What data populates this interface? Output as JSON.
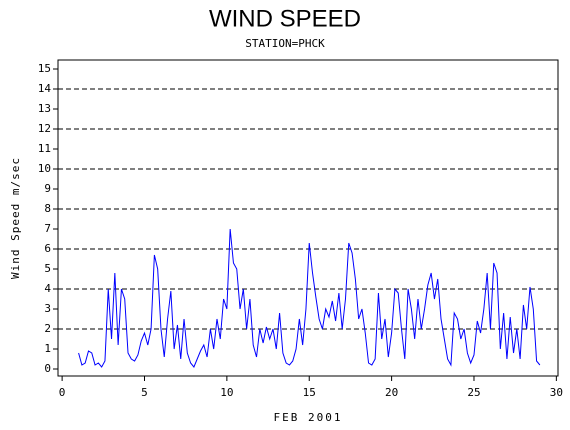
{
  "chart_data": {
    "type": "line",
    "title": "WIND SPEED",
    "subtitle": "STATION=PHCK",
    "x_label": "FEB 2001",
    "y_label": "Wind Speed m/sec",
    "x": [
      1,
      1.2,
      1.4,
      1.6,
      1.8,
      2,
      2.2,
      2.4,
      2.6,
      2.8,
      3,
      3.2,
      3.4,
      3.6,
      3.8,
      4,
      4.2,
      4.4,
      4.6,
      4.8,
      5,
      5.2,
      5.4,
      5.6,
      5.8,
      6,
      6.2,
      6.4,
      6.6,
      6.8,
      7,
      7.2,
      7.4,
      7.6,
      7.8,
      8,
      8.2,
      8.4,
      8.6,
      8.8,
      9,
      9.2,
      9.4,
      9.6,
      9.8,
      10,
      10.2,
      10.4,
      10.6,
      10.8,
      11,
      11.2,
      11.4,
      11.6,
      11.8,
      12,
      12.2,
      12.4,
      12.6,
      12.8,
      13,
      13.2,
      13.4,
      13.6,
      13.8,
      14,
      14.2,
      14.4,
      14.6,
      14.8,
      15,
      15.2,
      15.4,
      15.6,
      15.8,
      16,
      16.2,
      16.4,
      16.6,
      16.8,
      17,
      17.2,
      17.4,
      17.6,
      17.8,
      18,
      18.2,
      18.4,
      18.6,
      18.8,
      19,
      19.2,
      19.4,
      19.6,
      19.8,
      20,
      20.2,
      20.4,
      20.6,
      20.8,
      21,
      21.2,
      21.4,
      21.6,
      21.8,
      22,
      22.2,
      22.4,
      22.6,
      22.8,
      23,
      23.2,
      23.4,
      23.6,
      23.8,
      24,
      24.2,
      24.4,
      24.6,
      24.8,
      25,
      25.2,
      25.4,
      25.6,
      25.8,
      26,
      26.2,
      26.4,
      26.6,
      26.8,
      27,
      27.2,
      27.4,
      27.6,
      27.8,
      28,
      28.2,
      28.4,
      28.6,
      28.8,
      29
    ],
    "series": [
      {
        "name": "Wind Speed",
        "color": "#0000ff",
        "values": [
          0.8,
          0.2,
          0.3,
          0.9,
          0.8,
          0.2,
          0.3,
          0.1,
          0.4,
          4.0,
          1.5,
          4.8,
          1.2,
          4.0,
          3.5,
          0.8,
          0.5,
          0.4,
          0.7,
          1.4,
          1.8,
          1.2,
          2.0,
          5.7,
          5.0,
          2.0,
          0.6,
          2.5,
          3.9,
          1.0,
          2.2,
          0.5,
          2.5,
          0.8,
          0.3,
          0.1,
          0.5,
          0.9,
          1.2,
          0.6,
          2.0,
          1.0,
          2.5,
          1.5,
          3.5,
          3.0,
          7.0,
          5.3,
          5.0,
          3.0,
          4.0,
          2.0,
          3.5,
          1.2,
          0.6,
          2.0,
          1.3,
          2.1,
          1.5,
          2.0,
          1.0,
          2.8,
          0.8,
          0.3,
          0.2,
          0.4,
          1.0,
          2.5,
          1.2,
          3.0,
          6.3,
          4.8,
          3.6,
          2.5,
          2.0,
          3.0,
          2.6,
          3.4,
          2.4,
          3.8,
          2.0,
          3.5,
          6.3,
          5.8,
          4.5,
          2.5,
          3.0,
          1.8,
          0.3,
          0.2,
          0.5,
          3.8,
          1.5,
          2.5,
          0.6,
          1.8,
          4.0,
          3.8,
          2.0,
          0.5,
          4.0,
          3.0,
          1.5,
          3.5,
          2.0,
          3.0,
          4.2,
          4.8,
          3.5,
          4.5,
          2.5,
          1.5,
          0.5,
          0.2,
          2.8,
          2.5,
          1.5,
          2.0,
          0.8,
          0.3,
          0.7,
          2.4,
          1.8,
          3.0,
          4.8,
          2.0,
          5.3,
          4.8,
          1.0,
          2.8,
          0.5,
          2.6,
          0.8,
          2.0,
          0.5,
          3.2,
          2.0,
          4.1,
          3.0,
          0.4,
          0.2
        ]
      }
    ],
    "xlim": [
      -0.25,
      30.1
    ],
    "xticks": [
      0,
      5,
      10,
      15,
      20,
      25,
      30
    ],
    "ylim": [
      -0.35,
      15.45
    ],
    "yticks": [
      0,
      1,
      2,
      3,
      4,
      5,
      6,
      7,
      8,
      9,
      10,
      11,
      12,
      13,
      14,
      15
    ],
    "ygrid": [
      2,
      4,
      6,
      8,
      10,
      12,
      14
    ],
    "grid_style": "dashed"
  }
}
